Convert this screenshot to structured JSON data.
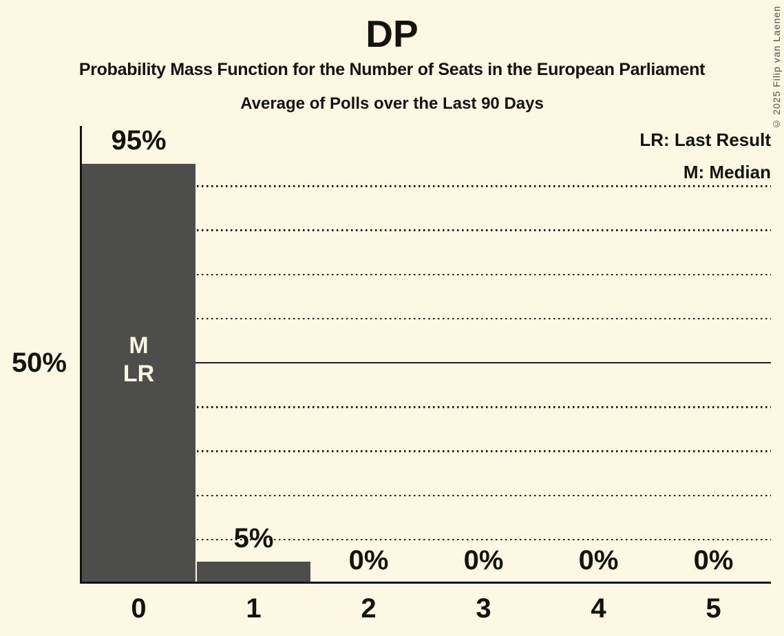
{
  "header": {
    "title": "DP",
    "subtitle": "Probability Mass Function for the Number of Seats in the European Parliament",
    "subsubtitle": "Average of Polls over the Last 90 Days"
  },
  "legend": {
    "last_result": "LR: Last Result",
    "median": "M: Median"
  },
  "copyright": "© 2025 Filip van Laenen",
  "colors": {
    "bg": "#FDF8E3",
    "bar": "#4D4D4B",
    "ink": "#14140F",
    "grid": "#1D1D1B",
    "bar-text": "#FCF8E3"
  },
  "chart_data": {
    "type": "bar",
    "title": "DP",
    "categories": [
      "0",
      "1",
      "2",
      "3",
      "4",
      "5"
    ],
    "values": [
      95,
      5,
      0,
      0,
      0,
      0
    ],
    "bar_labels": [
      "95%",
      "5%",
      "0%",
      "0%",
      "0%",
      "0%"
    ],
    "xlabel": "",
    "ylabel": "",
    "ylim": [
      0,
      103
    ],
    "y_tick_labels": [
      {
        "value": 50,
        "label": "50%"
      }
    ],
    "gridlines": {
      "dotted_at": [
        10,
        20,
        30,
        40,
        60,
        70,
        80,
        90
      ],
      "solid_at": [
        50
      ]
    },
    "annotations": [
      {
        "bar_index": 0,
        "lines": [
          "M",
          "LR"
        ]
      }
    ],
    "legend_position": "top-right",
    "grid": true
  }
}
